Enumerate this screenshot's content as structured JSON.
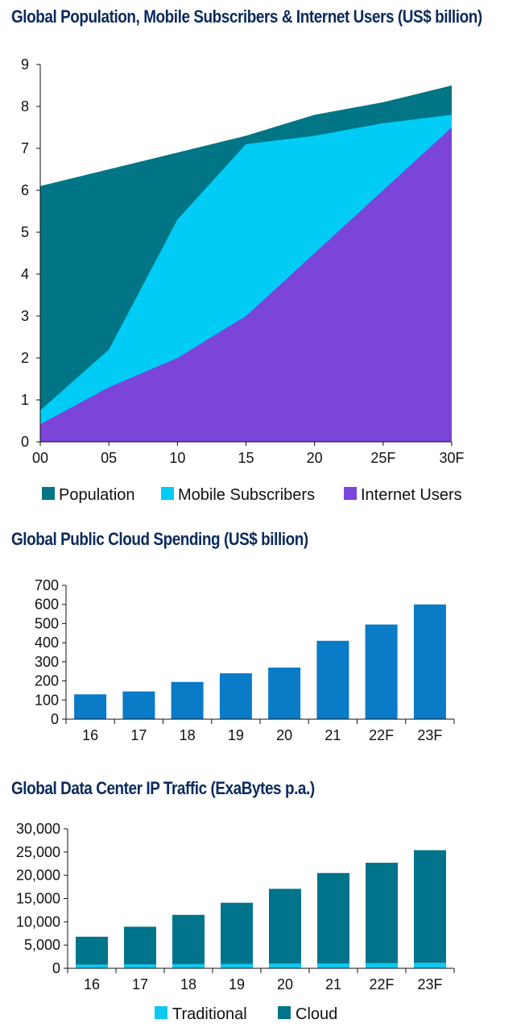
{
  "charts": [
    {
      "title": "Global Population, Mobile Subscribers & Internet Users (US$ billion)",
      "chart_data": {
        "type": "area",
        "x": [
          "00",
          "05",
          "10",
          "15",
          "20",
          "25F",
          "30F"
        ],
        "ylim": [
          0,
          9
        ],
        "yticks": [
          "0",
          "1",
          "2",
          "3",
          "4",
          "5",
          "6",
          "7",
          "8",
          "9"
        ],
        "series": [
          {
            "name": "Population",
            "color": "#007585",
            "values": [
              6.1,
              6.5,
              6.9,
              7.3,
              7.8,
              8.1,
              8.5
            ]
          },
          {
            "name": "Mobile Subscribers",
            "color": "#00ccf5",
            "values": [
              0.75,
              2.2,
              5.3,
              7.1,
              7.3,
              7.6,
              7.8
            ]
          },
          {
            "name": "Internet Users",
            "color": "#7b45d9",
            "values": [
              0.42,
              1.3,
              2.0,
              3.0,
              4.5,
              6.0,
              7.5
            ]
          }
        ],
        "legend": "bottom",
        "grid": false
      }
    },
    {
      "title": "Global Public Cloud Spending (US$ billion)",
      "chart_data": {
        "type": "bar",
        "categories": [
          "16",
          "17",
          "18",
          "19",
          "20",
          "21",
          "22F",
          "23F"
        ],
        "ylim": [
          0,
          700
        ],
        "yticks": [
          "0",
          "100",
          "200",
          "300",
          "400",
          "500",
          "600",
          "700"
        ],
        "series": [
          {
            "color": "#0a7bc6",
            "values": [
              130,
              145,
              195,
              240,
              270,
              410,
              495,
              600
            ]
          }
        ],
        "grid": false
      }
    },
    {
      "title": "Global Data Center IP Traffic (ExaBytes p.a.)",
      "chart_data": {
        "type": "bar",
        "stacked": true,
        "categories": [
          "16",
          "17",
          "18",
          "19",
          "20",
          "21",
          "22F",
          "23F"
        ],
        "ylim": [
          0,
          30000
        ],
        "yticks": [
          "0",
          "5,000",
          "10,000",
          "15,000",
          "20,000",
          "25,000",
          "30,000"
        ],
        "series": [
          {
            "name": "Traditional",
            "color": "#0fc8f2",
            "values": [
              800,
              850,
              900,
              950,
              1000,
              1050,
              1100,
              1150
            ]
          },
          {
            "name": "Cloud",
            "color": "#00748a",
            "values": [
              6000,
              8100,
              10600,
              13150,
              16100,
              19450,
              21600,
              24250
            ]
          }
        ],
        "legend": "bottom",
        "grid": false
      }
    }
  ]
}
